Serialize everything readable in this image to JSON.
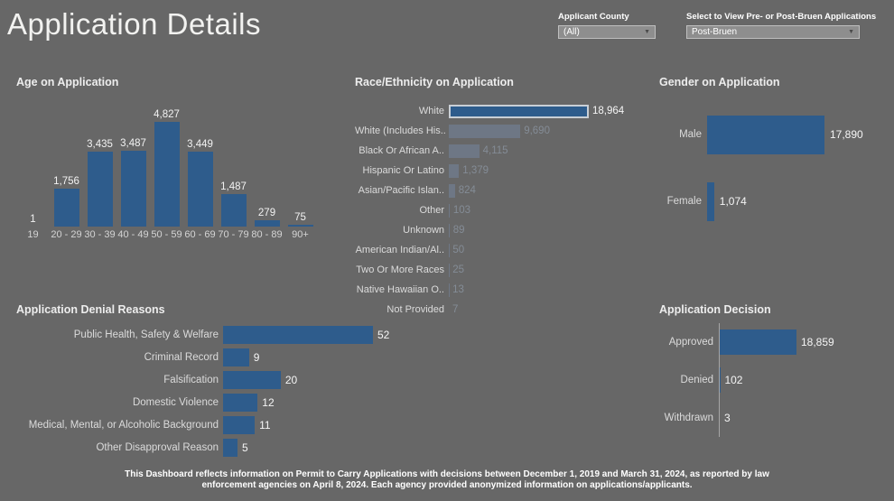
{
  "page": {
    "title": "Application Details",
    "colors": {
      "background": "#676767",
      "bar": "#2E5C8C",
      "faded_bar": "#6E7785",
      "selected_border": "#C9CFD6"
    }
  },
  "filters": {
    "county": {
      "label": "Applicant County",
      "value": "(All)"
    },
    "bruen": {
      "label": "Select to View Pre- or Post-Bruen Applications",
      "value": "Post-Bruen"
    }
  },
  "chart_data": [
    {
      "type": "bar",
      "orientation": "vertical",
      "title": "Age on Application",
      "categories": [
        "19",
        "20 - 29",
        "30 - 39",
        "40 - 49",
        "50 - 59",
        "60 - 69",
        "70 - 79",
        "80 - 89",
        "90+"
      ],
      "values": [
        1,
        1756,
        3435,
        3487,
        4827,
        3449,
        1487,
        279,
        75
      ],
      "labels": [
        "1",
        "1,756",
        "3,435",
        "3,487",
        "4,827",
        "3,449",
        "1,487",
        "279",
        "75"
      ],
      "xlabel": "",
      "ylabel": "",
      "grid": false,
      "ylim": [
        0,
        4827
      ]
    },
    {
      "type": "bar",
      "orientation": "horizontal",
      "title": "Race/Ethnicity on Application",
      "categories": [
        "White",
        "White (Includes His..",
        "Black Or African A..",
        "Hispanic Or Latino",
        "Asian/Pacific Islan..",
        "Other",
        "Unknown",
        "American Indian/Al..",
        "Two Or More Races",
        "Native Hawaiian O..",
        "Not Provided"
      ],
      "values": [
        18964,
        9690,
        4115,
        1379,
        824,
        103,
        89,
        50,
        25,
        13,
        7
      ],
      "labels": [
        "18,964",
        "9,690",
        "4,115",
        "1,379",
        "824",
        "103",
        "89",
        "50",
        "25",
        "13",
        "7"
      ],
      "selected": "White",
      "grid": false,
      "xlim": [
        0,
        18964
      ]
    },
    {
      "type": "bar",
      "orientation": "horizontal",
      "title": "Gender on Application",
      "categories": [
        "Male",
        "Female"
      ],
      "values": [
        17890,
        1074
      ],
      "labels": [
        "17,890",
        "1,074"
      ],
      "grid": false,
      "xlim": [
        0,
        17890
      ]
    },
    {
      "type": "bar",
      "orientation": "horizontal",
      "title": "Application Denial Reasons",
      "categories": [
        "Public Health, Safety & Welfare",
        "Criminal Record",
        "Falsification",
        "Domestic Violence",
        "Medical, Mental, or Alcoholic Background",
        "Other Disapproval Reason"
      ],
      "values": [
        52,
        9,
        20,
        12,
        11,
        5
      ],
      "labels": [
        "52",
        "9",
        "20",
        "12",
        "11",
        "5"
      ],
      "grid": false,
      "xlim": [
        0,
        52
      ]
    },
    {
      "type": "bar",
      "orientation": "horizontal",
      "title": "Application Decision",
      "categories": [
        "Approved",
        "Denied",
        "Withdrawn"
      ],
      "values": [
        18859,
        102,
        3
      ],
      "labels": [
        "18,859",
        "102",
        "3"
      ],
      "grid": false,
      "xlim": [
        0,
        18859
      ]
    }
  ],
  "footer": {
    "text": "This Dashboard reflects information on Permit to Carry Applications with decisions between December 1, 2019 and March 31, 2024, as reported by law enforcement agencies on April 8, 2024. Each agency provided anonymized information on applications/applicants."
  }
}
